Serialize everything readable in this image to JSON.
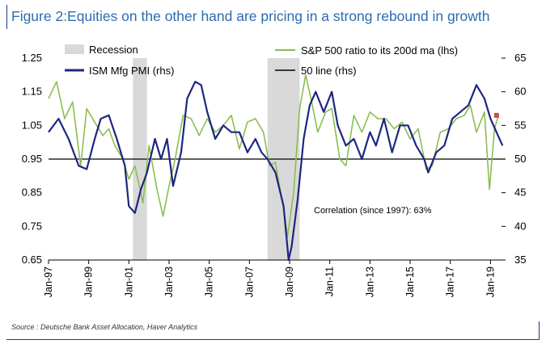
{
  "title": "Figure 2:Equities on the other hand are pricing in a strong rebound in growth",
  "source": "Source : Deutsche Bank Asset Allocation, Haver Analytics",
  "chart_data": {
    "type": "line",
    "title": "Figure 2:Equities on the other hand are pricing in a strong rebound in growth",
    "annotation": "Correlation (since 1997): 63%",
    "legend": {
      "recession": "Recession",
      "sp500": "S&P 500 ratio to its 200d ma (lhs)",
      "ism": "ISM Mfg PMI (rhs)",
      "line50": "50 line (rhs)"
    },
    "legend_placement": "top",
    "x_ticks": [
      "Jan-97",
      "Jan-99",
      "Jan-01",
      "Jan-03",
      "Jan-05",
      "Jan-07",
      "Jan-09",
      "Jan-11",
      "Jan-13",
      "Jan-15",
      "Jan-17",
      "Jan-19"
    ],
    "x_range": [
      1997.0,
      2019.75
    ],
    "y_left": {
      "range": [
        0.65,
        1.25
      ],
      "ticks": [
        "0.65",
        "0.75",
        "0.85",
        "0.95",
        "1.05",
        "1.15",
        "1.25"
      ]
    },
    "y_right": {
      "range": [
        35,
        65
      ],
      "ticks": [
        "35",
        "40",
        "45",
        "50",
        "55",
        "60",
        "65"
      ]
    },
    "recessions": [
      [
        2001.2,
        2001.9
      ],
      [
        2007.9,
        2009.5
      ]
    ],
    "reference_line": {
      "axis": "right",
      "value": 50
    },
    "last_marker": {
      "x": 2019.3,
      "y_left": 1.08
    },
    "colors": {
      "sp500": "#8cbd52",
      "ism": "#1c2780",
      "recession": "#d9d9d9",
      "marker": "#c0504d"
    },
    "series": [
      {
        "name": "ISM Mfg PMI (rhs)",
        "axis": "right",
        "x": [
          1997.0,
          1997.5,
          1998.0,
          1998.5,
          1998.9,
          1999.3,
          1999.6,
          2000.0,
          2000.4,
          2000.8,
          2001.0,
          2001.3,
          2001.6,
          2001.9,
          2002.3,
          2002.6,
          2002.9,
          2003.2,
          2003.6,
          2003.9,
          2004.3,
          2004.6,
          2004.9,
          2005.3,
          2005.7,
          2006.1,
          2006.5,
          2006.9,
          2007.3,
          2007.6,
          2007.9,
          2008.3,
          2008.7,
          2008.95,
          2009.1,
          2009.4,
          2009.7,
          2010.0,
          2010.3,
          2010.7,
          2011.1,
          2011.4,
          2011.8,
          2012.2,
          2012.6,
          2013.0,
          2013.3,
          2013.7,
          2014.1,
          2014.5,
          2014.9,
          2015.3,
          2015.7,
          2015.9,
          2016.3,
          2016.7,
          2017.1,
          2017.5,
          2017.9,
          2018.3,
          2018.7,
          2019.0,
          2019.3,
          2019.6
        ],
        "values": [
          54,
          56,
          53,
          49,
          48.5,
          53,
          56,
          56.5,
          53,
          49,
          43,
          42,
          45.5,
          48,
          53,
          50,
          53,
          46,
          51,
          59,
          61.5,
          61,
          57,
          53,
          55,
          54,
          54,
          51,
          53,
          51,
          50,
          48,
          43,
          35,
          37,
          44,
          53,
          58,
          60,
          57,
          60,
          55,
          52,
          53,
          50,
          54,
          52,
          56,
          51,
          55,
          55,
          52,
          50,
          48,
          51,
          52,
          56,
          57,
          58,
          61,
          59,
          56,
          54,
          52
        ]
      },
      {
        "name": "S&P 500 ratio to its 200d ma (lhs)",
        "axis": "left",
        "x": [
          1997.0,
          1997.4,
          1997.8,
          1998.2,
          1998.6,
          1998.9,
          1999.3,
          1999.7,
          2000.0,
          2000.3,
          2000.7,
          2001.0,
          2001.3,
          2001.7,
          2002.0,
          2002.4,
          2002.7,
          2003.0,
          2003.3,
          2003.7,
          2004.1,
          2004.5,
          2004.9,
          2005.3,
          2005.7,
          2006.1,
          2006.5,
          2006.9,
          2007.3,
          2007.7,
          2008.0,
          2008.3,
          2008.7,
          2008.9,
          2009.2,
          2009.5,
          2009.8,
          2010.1,
          2010.4,
          2010.8,
          2011.1,
          2011.5,
          2011.8,
          2012.2,
          2012.6,
          2013.0,
          2013.4,
          2013.8,
          2014.2,
          2014.6,
          2015.0,
          2015.4,
          2015.8,
          2016.1,
          2016.5,
          2016.9,
          2017.3,
          2017.7,
          2018.0,
          2018.3,
          2018.7,
          2018.95,
          2019.2,
          2019.4
        ],
        "values": [
          1.13,
          1.18,
          1.07,
          1.12,
          0.93,
          1.1,
          1.06,
          1.02,
          1.04,
          0.99,
          0.95,
          0.89,
          0.93,
          0.82,
          0.99,
          0.86,
          0.78,
          0.87,
          0.95,
          1.08,
          1.07,
          1.02,
          1.07,
          1.03,
          1.05,
          1.08,
          0.98,
          1.06,
          1.07,
          1.03,
          0.93,
          0.94,
          0.8,
          0.72,
          0.85,
          1.1,
          1.2,
          1.12,
          1.03,
          1.09,
          1.1,
          0.95,
          0.93,
          1.08,
          1.03,
          1.09,
          1.07,
          1.07,
          1.04,
          1.06,
          1.01,
          1.04,
          0.92,
          0.93,
          1.03,
          1.04,
          1.07,
          1.08,
          1.11,
          1.03,
          1.09,
          0.86,
          1.04,
          1.08
        ]
      }
    ]
  }
}
